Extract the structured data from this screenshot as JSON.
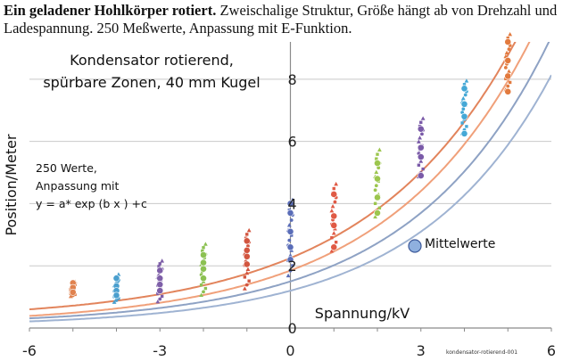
{
  "heading": {
    "bold": "Ein geladener Hohlkörper rotiert.",
    "rest": "  Zweischalige Struktur, Größe hängt ab von Drehzahl und Ladespannung. 250 Meßwerte, Anpassung mit E-Funktion."
  },
  "chart_data": {
    "type": "scatter",
    "title_lines": [
      "Kondensator rotierend,",
      "spürbare Zonen, 40 mm Kugel"
    ],
    "xlabel": "Spannung/kV",
    "ylabel": "Position/Meter",
    "xlim": [
      -6,
      6
    ],
    "ylim": [
      0,
      9.2
    ],
    "x_ticks": [
      "-6",
      "-3",
      "0",
      "3",
      "6"
    ],
    "y_ticks": [
      "0",
      "2",
      "4",
      "6",
      "8"
    ],
    "grid": "horizontal",
    "note_lines": [
      "250 Werte,",
      "Anpassung mit",
      "y = a* exp (b x ) +c"
    ],
    "legend": {
      "label": "Mittelwerte",
      "placement": "right-middle"
    },
    "watermark": "kondensator-rotierend-001",
    "fit_curves": [
      {
        "color": "#e2845c",
        "a": 2.0,
        "b": 0.29,
        "c": 0.25
      },
      {
        "color": "#f0a07a",
        "a": 1.75,
        "b": 0.3,
        "c": 0.1
      },
      {
        "color": "#8ea2c4",
        "a": 1.4,
        "b": 0.315,
        "c": 0.1
      },
      {
        "color": "#9fb3d2",
        "a": 1.15,
        "b": 0.325,
        "c": 0.05
      }
    ],
    "groups": [
      {
        "x": -5,
        "color": "#e0824f",
        "min": 1.0,
        "max": 1.5,
        "means": [
          1.45,
          1.3,
          1.15
        ]
      },
      {
        "x": -4,
        "color": "#4a9fce",
        "min": 0.8,
        "max": 1.75,
        "means": [
          1.6,
          1.35,
          1.2,
          1.05
        ]
      },
      {
        "x": -3,
        "color": "#7e5fa8",
        "min": 0.8,
        "max": 2.2,
        "means": [
          1.85,
          1.6,
          1.4,
          1.2
        ]
      },
      {
        "x": -2,
        "color": "#8cc152",
        "min": 1.0,
        "max": 2.75,
        "means": [
          2.35,
          2.1,
          1.9,
          1.6
        ]
      },
      {
        "x": -1,
        "color": "#d2553f",
        "min": 1.2,
        "max": 3.2,
        "means": [
          2.8,
          2.5,
          2.3,
          2.05
        ]
      },
      {
        "x": 0,
        "color": "#5a6db8",
        "min": 1.6,
        "max": 4.2,
        "means": [
          4.0,
          3.7,
          3.1,
          2.6,
          2.2
        ]
      },
      {
        "x": 1,
        "color": "#e05a45",
        "min": 2.4,
        "max": 4.7,
        "means": [
          4.3,
          3.6,
          3.3,
          2.6
        ]
      },
      {
        "x": 2,
        "color": "#9cc64e",
        "min": 3.5,
        "max": 5.8,
        "means": [
          5.3,
          4.8,
          4.2,
          3.7
        ]
      },
      {
        "x": 3,
        "color": "#7a5aa8",
        "min": 4.8,
        "max": 6.8,
        "means": [
          6.4,
          5.8,
          5.5,
          4.9
        ]
      },
      {
        "x": 4,
        "color": "#45a8d6",
        "min": 6.2,
        "max": 8.0,
        "means": [
          7.7,
          7.2,
          6.8,
          6.25
        ]
      },
      {
        "x": 5,
        "color": "#e27a3e",
        "min": 7.6,
        "max": 9.5,
        "means": [
          9.2,
          8.6,
          8.1,
          7.6
        ]
      }
    ]
  }
}
